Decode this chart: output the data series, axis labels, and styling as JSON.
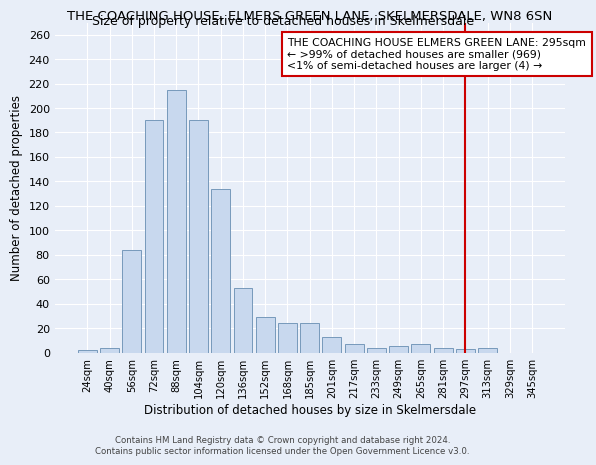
{
  "title": "THE COACHING HOUSE, ELMERS GREEN LANE, SKELMERSDALE, WN8 6SN",
  "subtitle": "Size of property relative to detached houses in Skelmersdale",
  "xlabel": "Distribution of detached houses by size in Skelmersdale",
  "ylabel": "Number of detached properties",
  "bar_color": "#c8d8ee",
  "bar_edge_color": "#7799bb",
  "background_color": "#e8eef8",
  "grid_color": "#ffffff",
  "categories": [
    "24sqm",
    "40sqm",
    "56sqm",
    "72sqm",
    "88sqm",
    "104sqm",
    "120sqm",
    "136sqm",
    "152sqm",
    "168sqm",
    "185sqm",
    "201sqm",
    "217sqm",
    "233sqm",
    "249sqm",
    "265sqm",
    "281sqm",
    "297sqm",
    "313sqm",
    "329sqm",
    "345sqm"
  ],
  "values": [
    2,
    4,
    84,
    190,
    215,
    190,
    134,
    53,
    29,
    24,
    24,
    13,
    7,
    4,
    5,
    7,
    4,
    3,
    4,
    0,
    0
  ],
  "ylim": [
    0,
    270
  ],
  "yticks": [
    0,
    20,
    40,
    60,
    80,
    100,
    120,
    140,
    160,
    180,
    200,
    220,
    240,
    260
  ],
  "vline_index": 17,
  "vline_color": "#cc0000",
  "annotation_title": "THE COACHING HOUSE ELMERS GREEN LANE: 295sqm",
  "annotation_line1": "← >99% of detached houses are smaller (969)",
  "annotation_line2": "<1% of semi-detached houses are larger (4) →",
  "annotation_box_color": "#ffffff",
  "annotation_box_edge": "#cc0000",
  "title_fontsize": 9.5,
  "subtitle_fontsize": 9,
  "footer1": "Contains HM Land Registry data © Crown copyright and database right 2024.",
  "footer2": "Contains public sector information licensed under the Open Government Licence v3.0."
}
